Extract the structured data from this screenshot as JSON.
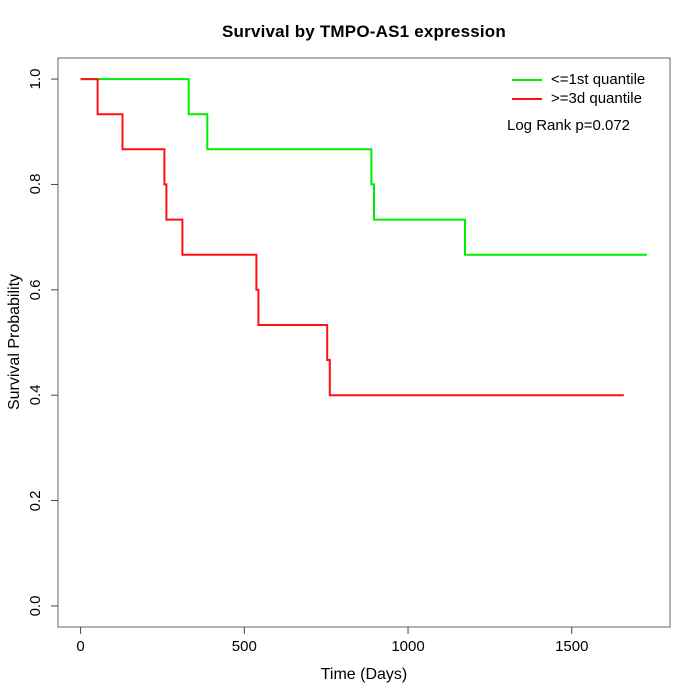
{
  "chart_data": {
    "type": "line",
    "subtype": "kaplan-meier-step-survival",
    "title": "Survival by TMPO-AS1 expression",
    "xlabel": "Time (Days)",
    "ylabel": "Survival Probability",
    "xlim": [
      -69,
      1800
    ],
    "ylim": [
      -0.04,
      1.04
    ],
    "xticks": [
      0,
      500,
      1000,
      1500
    ],
    "xtick_labels": [
      "0",
      "500",
      "1000",
      "1500"
    ],
    "yticks": [
      0.0,
      0.2,
      0.4,
      0.6,
      0.8,
      1.0
    ],
    "ytick_labels": [
      "0.0",
      "0.2",
      "0.4",
      "0.6",
      "0.8",
      "1.0"
    ],
    "grid": false,
    "legend_position": "topright",
    "annotation": "Log Rank p=0.072",
    "series": [
      {
        "name": "<=1st quantile",
        "color": "#00EE00",
        "points": [
          [
            0,
            1.0
          ],
          [
            330,
            0.9333
          ],
          [
            387,
            0.8667
          ],
          [
            888,
            0.8
          ],
          [
            896,
            0.7333
          ],
          [
            1174,
            0.6667
          ],
          [
            1729,
            0.6667
          ]
        ]
      },
      {
        "name": ">=3d quantile",
        "color": "#FF1111",
        "points": [
          [
            0,
            1.0
          ],
          [
            52,
            0.9333
          ],
          [
            128,
            0.8667
          ],
          [
            256,
            0.8
          ],
          [
            262,
            0.7333
          ],
          [
            311,
            0.6667
          ],
          [
            537,
            0.6
          ],
          [
            543,
            0.5333
          ],
          [
            753,
            0.4667
          ],
          [
            761,
            0.4
          ],
          [
            1659,
            0.4
          ]
        ]
      }
    ],
    "axis_color": "#666666",
    "tick_color": "#444444"
  }
}
